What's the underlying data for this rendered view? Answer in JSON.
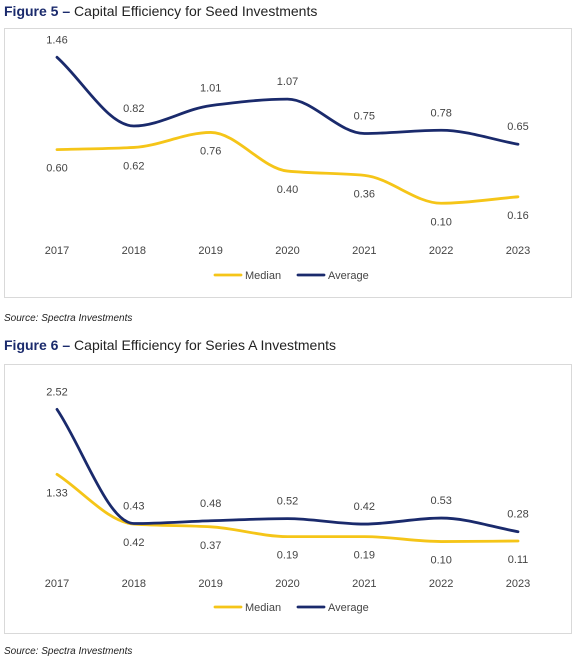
{
  "figures": [
    {
      "label": "Figure 5",
      "dash": "–",
      "title": "Capital Efficiency for Seed Investments",
      "source": "Source: Spectra Investments"
    },
    {
      "label": "Figure 6",
      "dash": "–",
      "title": "Capital Efficiency for Series A Investments",
      "source": "Source: Spectra Investments"
    }
  ],
  "colors": {
    "median": "#f5c518",
    "average": "#1a2a6c",
    "label": "#444444"
  },
  "chart_data": [
    {
      "type": "line",
      "title": "Capital Efficiency for Seed Investments",
      "categories": [
        "2017",
        "2018",
        "2019",
        "2020",
        "2021",
        "2022",
        "2023"
      ],
      "series": [
        {
          "name": "Median",
          "values": [
            0.6,
            0.62,
            0.76,
            0.4,
            0.36,
            0.1,
            0.16
          ]
        },
        {
          "name": "Average",
          "values": [
            1.46,
            0.82,
            1.01,
            1.07,
            0.75,
            0.78,
            0.65
          ]
        }
      ],
      "ylim": [
        0,
        1.5
      ],
      "legend": "bottom",
      "grid": false
    },
    {
      "type": "line",
      "title": "Capital Efficiency for Series A Investments",
      "categories": [
        "2017",
        "2018",
        "2019",
        "2020",
        "2021",
        "2022",
        "2023"
      ],
      "series": [
        {
          "name": "Median",
          "values": [
            1.33,
            0.42,
            0.37,
            0.19,
            0.19,
            0.1,
            0.11
          ]
        },
        {
          "name": "Average",
          "values": [
            2.52,
            0.43,
            0.48,
            0.52,
            0.42,
            0.53,
            0.28
          ]
        }
      ],
      "ylim": [
        0,
        2.6
      ],
      "legend": "bottom",
      "grid": false
    }
  ]
}
